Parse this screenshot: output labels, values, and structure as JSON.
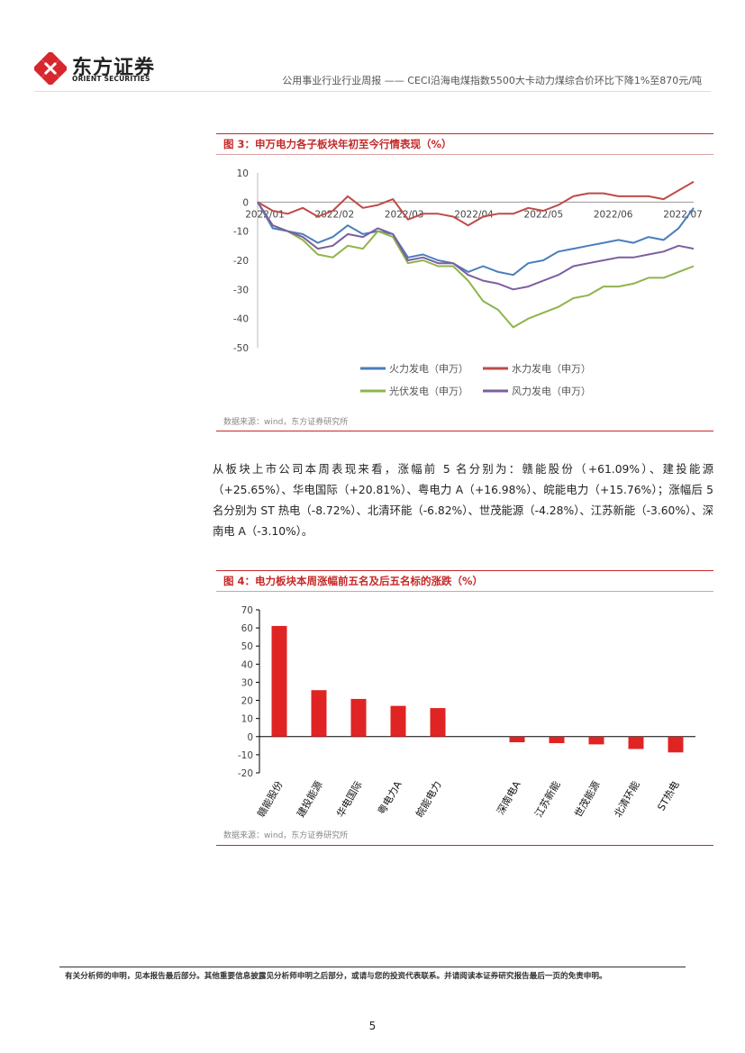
{
  "header": {
    "logo_cn": "东方证券",
    "logo_en": "ORIENT SECURITIES",
    "report_title": "公用事业行业行业周报 —— CECI沿海电煤指数5500大卡动力煤综合价环比下降1%至870元/吨",
    "brand_color": "#d9262d"
  },
  "figure3": {
    "title": "图 3：申万电力各子板块年初至今行情表现（%）",
    "source": "数据来源：wind，东方证券研究所",
    "chart_data": {
      "type": "line",
      "x": [
        "2022/01/04",
        "2022/01/10",
        "2022/01/17",
        "2022/01/24",
        "2022/02/07",
        "2022/02/14",
        "2022/02/21",
        "2022/02/28",
        "2022/03/01",
        "2022/03/07",
        "2022/03/14",
        "2022/03/21",
        "2022/03/28",
        "2022/04/01",
        "2022/04/11",
        "2022/04/18",
        "2022/04/25",
        "2022/04/29",
        "2022/05/09",
        "2022/05/16",
        "2022/05/23",
        "2022/05/30",
        "2022/06/01",
        "2022/06/06",
        "2022/06/13",
        "2022/06/20",
        "2022/06/27",
        "2022/07/01",
        "2022/07/05",
        "2022/07/08"
      ],
      "x_ticks": [
        "2022/01",
        "2022/02",
        "2022/03",
        "2022/04",
        "2022/05",
        "2022/06",
        "2022/07"
      ],
      "ylim": [
        -50,
        10
      ],
      "y_ticks": [
        10,
        0,
        -10,
        -20,
        -30,
        -40,
        -50
      ],
      "legend_position": "bottom",
      "series": [
        {
          "name": "火力发电（申万）",
          "color": "#4a7ebb",
          "values": [
            0,
            -9,
            -10,
            -11,
            -14,
            -12,
            -8,
            -11,
            -10,
            -11,
            -19,
            -18,
            -20,
            -21,
            -24,
            -22,
            -24,
            -25,
            -21,
            -20,
            -17,
            -16,
            -15,
            -14,
            -13,
            -14,
            -12,
            -13,
            -9,
            -2
          ]
        },
        {
          "name": "水力发电（申万）",
          "color": "#be4b48",
          "values": [
            0,
            -3,
            -4,
            -2,
            -5,
            -3,
            2,
            -2,
            -1,
            1,
            -6,
            -4,
            -4,
            -5,
            -8,
            -5,
            -4,
            -4,
            -2,
            -3,
            -1,
            2,
            3,
            3,
            2,
            2,
            2,
            1,
            4,
            7
          ]
        },
        {
          "name": "光伏发电（申万）",
          "color": "#8fb44b",
          "values": [
            0,
            -8,
            -10,
            -13,
            -18,
            -19,
            -15,
            -16,
            -10,
            -12,
            -21,
            -20,
            -22,
            -22,
            -27,
            -34,
            -37,
            -43,
            -40,
            -38,
            -36,
            -33,
            -32,
            -29,
            -29,
            -28,
            -26,
            -26,
            -24,
            -22
          ]
        },
        {
          "name": "风力发电（申万）",
          "color": "#7d5fa0",
          "values": [
            0,
            -8,
            -10,
            -12,
            -16,
            -15,
            -11,
            -12,
            -9,
            -11,
            -20,
            -19,
            -21,
            -21,
            -25,
            -27,
            -28,
            -30,
            -29,
            -27,
            -25,
            -22,
            -21,
            -20,
            -19,
            -19,
            -18,
            -17,
            -15,
            -16
          ]
        }
      ]
    }
  },
  "paragraph": "从板块上市公司本周表现来看，涨幅前 5 名分别为：赣能股份（+61.09%）、建投能源（+25.65%）、华电国际（+20.81%）、粤电力 A（+16.98%）、皖能电力（+15.76%）；涨幅后 5 名分别为 ST 热电（-8.72%）、北清环能（-6.82%）、世茂能源（-4.28%）、江苏新能（-3.60%）、深南电 A（-3.10%）。",
  "figure4": {
    "title": "图 4：电力板块本周涨幅前五名及后五名标的涨跌（%）",
    "source": "数据来源：wind，东方证券研究所",
    "chart_data": {
      "type": "bar",
      "categories": [
        "赣能股份",
        "建投能源",
        "华电国际",
        "粤电力A",
        "皖能电力",
        "",
        "深南电A",
        "江苏新能",
        "世茂能源",
        "北清环能",
        "ST热电"
      ],
      "values": [
        61.09,
        25.65,
        20.81,
        16.98,
        15.76,
        null,
        -3.1,
        -3.6,
        -4.28,
        -6.82,
        -8.72
      ],
      "ylim": [
        -20,
        70
      ],
      "y_ticks": [
        70,
        60,
        50,
        40,
        30,
        20,
        10,
        0,
        -10,
        -20
      ],
      "bar_color": "#e02424"
    }
  },
  "footer": {
    "disclaimer": "有关分析师的申明，见本报告最后部分。其他重要信息披露见分析师申明之后部分，或请与您的投资代表联系。并请阅读本证券研究报告最后一页的免责申明。",
    "page_number": "5"
  }
}
